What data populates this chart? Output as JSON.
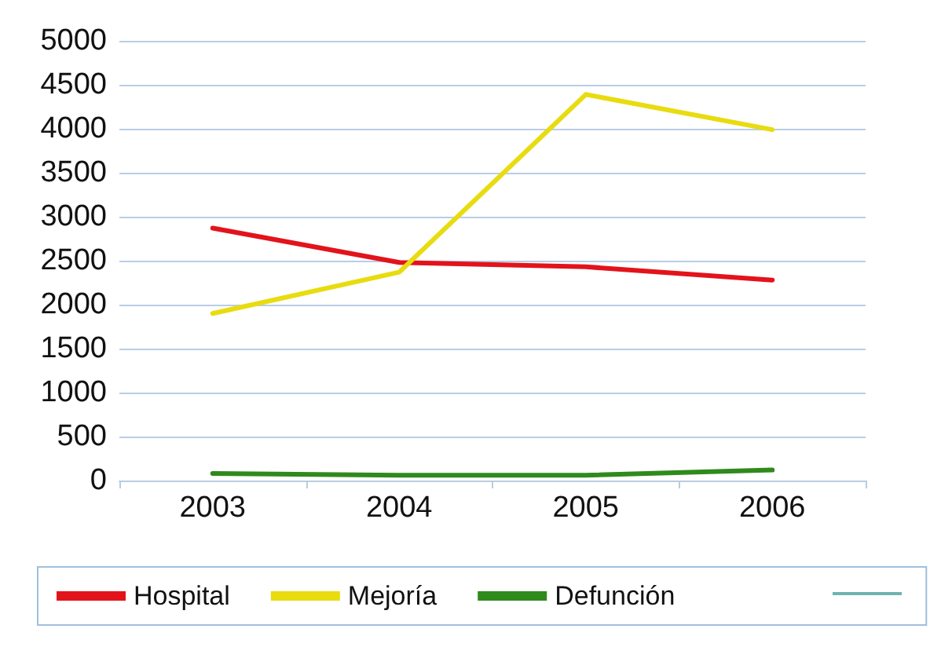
{
  "chart_data": {
    "type": "line",
    "categories": [
      "2003",
      "2004",
      "2005",
      "2006"
    ],
    "series": [
      {
        "name": "Hospital",
        "color": "#e3131b",
        "values": [
          2870,
          2480,
          2430,
          2280
        ]
      },
      {
        "name": "Mejoría",
        "color": "#e8dc10",
        "values": [
          1900,
          2370,
          4390,
          3990
        ]
      },
      {
        "name": "Defunción",
        "color": "#2f8a1c",
        "values": [
          80,
          60,
          60,
          120
        ]
      }
    ],
    "ylim": [
      0,
      5000
    ],
    "yticks": [
      0,
      500,
      1000,
      1500,
      2000,
      2500,
      3000,
      3500,
      4000,
      4500,
      5000
    ],
    "grid": "y",
    "legend": "bottom",
    "marker": "none",
    "line_style": "solid"
  }
}
